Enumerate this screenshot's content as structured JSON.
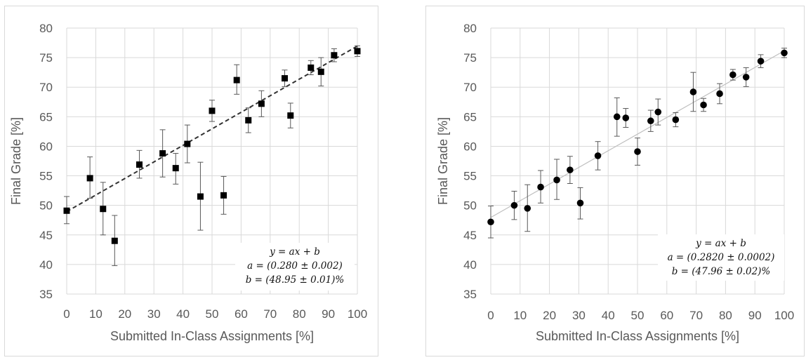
{
  "chart_data": [
    {
      "type": "scatter",
      "title": "",
      "xlabel": "Submitted In-Class Assignments [%]",
      "ylabel": "Final Grade [%]",
      "xlim": [
        0,
        100
      ],
      "ylim": [
        35,
        80
      ],
      "x_ticks": [
        "0",
        "10",
        "20",
        "30",
        "40",
        "50",
        "60",
        "70",
        "80",
        "90",
        "100"
      ],
      "y_ticks": [
        "35",
        "40",
        "45",
        "50",
        "55",
        "60",
        "65",
        "70",
        "75",
        "80"
      ],
      "grid": true,
      "marker": "square",
      "marker_color": "#000000",
      "fit_line": {
        "style": "dashed",
        "color": "#333333",
        "slope": 0.28,
        "intercept": 48.95
      },
      "equation": [
        "y = ax + b",
        "a = (0.280 ± 0.002)",
        "b = (48.95 ± 0.01)%"
      ],
      "points": [
        {
          "x": 0,
          "y": 49.1,
          "err_low": 2.2,
          "err_high": 2.4
        },
        {
          "x": 8,
          "y": 54.6,
          "err_low": 3.4,
          "err_high": 3.6
        },
        {
          "x": 12.5,
          "y": 49.4,
          "err_low": 4.4,
          "err_high": 4.5
        },
        {
          "x": 16.5,
          "y": 44.0,
          "err_low": 4.2,
          "err_high": 4.3
        },
        {
          "x": 25,
          "y": 56.9,
          "err_low": 2.3,
          "err_high": 2.4
        },
        {
          "x": 33,
          "y": 58.8,
          "err_low": 4.0,
          "err_high": 4.0
        },
        {
          "x": 37.5,
          "y": 56.3,
          "err_low": 2.7,
          "err_high": 2.5
        },
        {
          "x": 41.5,
          "y": 60.4,
          "err_low": 3.2,
          "err_high": 3.2
        },
        {
          "x": 46,
          "y": 51.5,
          "err_low": 5.7,
          "err_high": 5.8
        },
        {
          "x": 50,
          "y": 66.0,
          "err_low": 1.8,
          "err_high": 1.8
        },
        {
          "x": 54,
          "y": 51.7,
          "err_low": 3.2,
          "err_high": 3.2
        },
        {
          "x": 58.5,
          "y": 71.2,
          "err_low": 2.4,
          "err_high": 2.6
        },
        {
          "x": 62.5,
          "y": 64.4,
          "err_low": 2.1,
          "err_high": 2.1
        },
        {
          "x": 67,
          "y": 67.2,
          "err_low": 2.2,
          "err_high": 2.2
        },
        {
          "x": 75,
          "y": 71.5,
          "err_low": 1.4,
          "err_high": 1.4
        },
        {
          "x": 77,
          "y": 65.2,
          "err_low": 2.1,
          "err_high": 2.1
        },
        {
          "x": 84,
          "y": 73.3,
          "err_low": 1.2,
          "err_high": 1.2
        },
        {
          "x": 87.5,
          "y": 72.6,
          "err_low": 2.4,
          "err_high": 2.4
        },
        {
          "x": 92,
          "y": 75.4,
          "err_low": 1.1,
          "err_high": 1.1
        },
        {
          "x": 100,
          "y": 76.1,
          "err_low": 0.9,
          "err_high": 0.9
        }
      ]
    },
    {
      "type": "scatter",
      "title": "",
      "xlabel": "Submitted In-Class Assignments [%]",
      "ylabel": "Final Grade  [%]",
      "xlim": [
        0,
        100
      ],
      "ylim": [
        35,
        80
      ],
      "x_ticks": [
        "0",
        "10",
        "20",
        "30",
        "40",
        "50",
        "60",
        "70",
        "80",
        "90",
        "100"
      ],
      "y_ticks": [
        "35",
        "40",
        "45",
        "50",
        "55",
        "60",
        "65",
        "70",
        "75",
        "80"
      ],
      "grid": true,
      "marker": "circle",
      "marker_color": "#000000",
      "fit_line": {
        "style": "solid",
        "color": "#bfbfbf",
        "slope": 0.282,
        "intercept": 47.96
      },
      "equation": [
        "y = ax + b",
        "a = (0.2820 ± 0.0002)",
        "b = (47.96 ± 0.02)%"
      ],
      "points": [
        {
          "x": 0,
          "y": 47.2,
          "err_low": 2.7,
          "err_high": 2.7
        },
        {
          "x": 8,
          "y": 50.0,
          "err_low": 2.4,
          "err_high": 2.4
        },
        {
          "x": 12.5,
          "y": 49.5,
          "err_low": 3.9,
          "err_high": 4.0
        },
        {
          "x": 17,
          "y": 53.1,
          "err_low": 2.7,
          "err_high": 2.8
        },
        {
          "x": 22.5,
          "y": 54.3,
          "err_low": 3.3,
          "err_high": 3.5
        },
        {
          "x": 27,
          "y": 56.0,
          "err_low": 2.3,
          "err_high": 2.3
        },
        {
          "x": 30.5,
          "y": 50.4,
          "err_low": 2.7,
          "err_high": 2.6
        },
        {
          "x": 36.5,
          "y": 58.4,
          "err_low": 2.4,
          "err_high": 2.4
        },
        {
          "x": 43,
          "y": 65.0,
          "err_low": 3.3,
          "err_high": 3.2
        },
        {
          "x": 46,
          "y": 64.8,
          "err_low": 1.6,
          "err_high": 1.6
        },
        {
          "x": 50,
          "y": 59.1,
          "err_low": 2.3,
          "err_high": 2.3
        },
        {
          "x": 54.5,
          "y": 64.3,
          "err_low": 1.8,
          "err_high": 1.8
        },
        {
          "x": 57,
          "y": 65.8,
          "err_low": 2.2,
          "err_high": 2.2
        },
        {
          "x": 63,
          "y": 64.5,
          "err_low": 1.2,
          "err_high": 1.2
        },
        {
          "x": 69,
          "y": 69.2,
          "err_low": 3.3,
          "err_high": 3.3
        },
        {
          "x": 72.5,
          "y": 67.0,
          "err_low": 1.1,
          "err_high": 1.1
        },
        {
          "x": 78,
          "y": 68.9,
          "err_low": 1.7,
          "err_high": 1.7
        },
        {
          "x": 82.5,
          "y": 72.1,
          "err_low": 0.9,
          "err_high": 0.9
        },
        {
          "x": 87,
          "y": 71.7,
          "err_low": 1.6,
          "err_high": 1.6
        },
        {
          "x": 92,
          "y": 74.4,
          "err_low": 1.1,
          "err_high": 1.1
        },
        {
          "x": 100,
          "y": 75.8,
          "err_low": 0.8,
          "err_high": 0.8
        }
      ]
    }
  ]
}
